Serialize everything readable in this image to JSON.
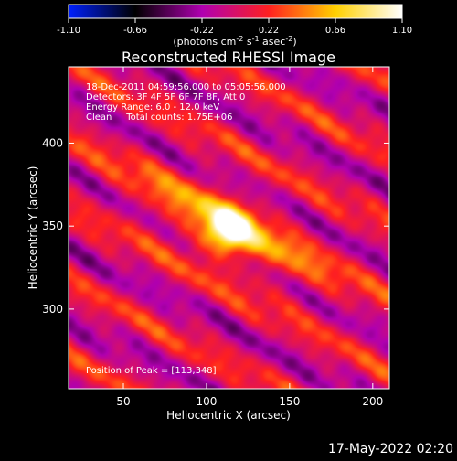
{
  "chart_data": {
    "type": "heatmap",
    "title": "Reconstructed RHESSI Image",
    "xlabel": "Heliocentric X (arcsec)",
    "ylabel": "Heliocentric Y (arcsec)",
    "xlim": [
      17,
      210
    ],
    "ylim": [
      252,
      446
    ],
    "xticks": [
      50,
      100,
      150,
      200
    ],
    "yticks": [
      300,
      350,
      400
    ],
    "colorbar": {
      "min": -1.1,
      "max": 1.1,
      "ticks": [
        "-1.10",
        "-0.66",
        "-0.22",
        "0.22",
        "0.66",
        "1.10"
      ],
      "unit_parts": [
        "(photons cm",
        "-2",
        " s",
        "-1",
        " asec",
        "-2",
        ")"
      ],
      "colors": [
        "#0020ff",
        "#000000",
        "#b000b0",
        "#ff2020",
        "#ffd000",
        "#ffffff"
      ]
    },
    "info_lines": [
      "18-Dec-2011 04:59:56.000 to 05:05:56.000",
      "Detectors: 3F 4F 5F 6F 7F 8F, Att 0",
      "Energy Range: 6.0 - 12.0 keV",
      "Clean     Total counts: 1.75E+06"
    ],
    "peak_label": "Position of Peak = [113,348]",
    "peak": {
      "x": 113,
      "y": 348,
      "value": 1.1
    },
    "grid": false,
    "legend": "none"
  },
  "footer": {
    "timestamp": "17-May-2022 02:20"
  }
}
